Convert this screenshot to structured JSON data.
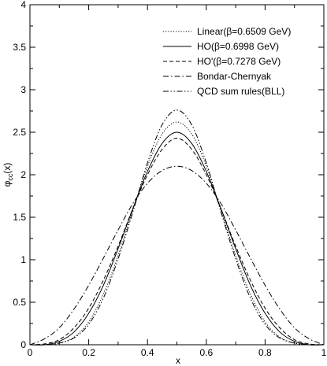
{
  "chart_data": {
    "type": "line",
    "title": "",
    "xlabel": "x",
    "ylabel_main": "φ",
    "ylabel_sub": "cc",
    "ylabel_tail": "(x)",
    "xlim": [
      0,
      1
    ],
    "ylim": [
      0,
      4
    ],
    "x_ticks": [
      "0",
      "0.2",
      "0.4",
      "0.6",
      "0.8",
      "1"
    ],
    "y_ticks": [
      "0",
      "0.5",
      "1",
      "1.5",
      "2",
      "2.5",
      "3",
      "3.5",
      "4"
    ],
    "legend_position": "top-right",
    "grid": false,
    "series": [
      {
        "name": "Linear(β=0.6509 GeV)",
        "style": "dotted",
        "x": [
          0,
          0.05,
          0.1,
          0.15,
          0.2,
          0.25,
          0.3,
          0.35,
          0.4,
          0.45,
          0.5,
          0.55,
          0.6,
          0.65,
          0.7,
          0.75,
          0.8,
          0.85,
          0.9,
          0.95,
          1
        ],
        "y": [
          0,
          0.0,
          0.02,
          0.09,
          0.27,
          0.6,
          1.05,
          1.58,
          2.1,
          2.48,
          2.62,
          2.48,
          2.1,
          1.58,
          1.05,
          0.6,
          0.27,
          0.09,
          0.02,
          0.0,
          0
        ]
      },
      {
        "name": "HO(β=0.6998 GeV)",
        "style": "solid",
        "x": [
          0,
          0.05,
          0.1,
          0.15,
          0.2,
          0.25,
          0.3,
          0.35,
          0.4,
          0.45,
          0.5,
          0.55,
          0.6,
          0.65,
          0.7,
          0.75,
          0.8,
          0.85,
          0.9,
          0.95,
          1
        ],
        "y": [
          0,
          0.0,
          0.04,
          0.15,
          0.37,
          0.7,
          1.13,
          1.6,
          2.04,
          2.37,
          2.5,
          2.37,
          2.04,
          1.6,
          1.13,
          0.7,
          0.37,
          0.15,
          0.04,
          0.0,
          0
        ]
      },
      {
        "name": "HO'(β=0.7278 GeV)",
        "style": "dashed",
        "x": [
          0,
          0.05,
          0.1,
          0.15,
          0.2,
          0.25,
          0.3,
          0.35,
          0.4,
          0.45,
          0.5,
          0.55,
          0.6,
          0.65,
          0.7,
          0.75,
          0.8,
          0.85,
          0.9,
          0.95,
          1
        ],
        "y": [
          0,
          0.01,
          0.06,
          0.2,
          0.43,
          0.76,
          1.16,
          1.6,
          2.0,
          2.3,
          2.43,
          2.3,
          2.0,
          1.6,
          1.16,
          0.76,
          0.43,
          0.2,
          0.06,
          0.01,
          0
        ]
      },
      {
        "name": "Bondar-Chernyak",
        "style": "dash-dot",
        "x": [
          0,
          0.05,
          0.1,
          0.15,
          0.2,
          0.25,
          0.3,
          0.35,
          0.4,
          0.45,
          0.5,
          0.55,
          0.6,
          0.65,
          0.7,
          0.75,
          0.8,
          0.85,
          0.9,
          0.95,
          1
        ],
        "y": [
          0,
          0.07,
          0.2,
          0.42,
          0.7,
          1.02,
          1.35,
          1.66,
          1.9,
          2.05,
          2.1,
          2.05,
          1.9,
          1.66,
          1.35,
          1.02,
          0.7,
          0.42,
          0.2,
          0.07,
          0
        ]
      },
      {
        "name": "QCD sum rules(BLL)",
        "style": "dash-dot-dot",
        "x": [
          0,
          0.05,
          0.1,
          0.15,
          0.2,
          0.25,
          0.3,
          0.35,
          0.4,
          0.45,
          0.5,
          0.55,
          0.6,
          0.65,
          0.7,
          0.75,
          0.8,
          0.85,
          0.9,
          0.95,
          1
        ],
        "y": [
          0,
          0.0,
          0.02,
          0.08,
          0.24,
          0.55,
          1.01,
          1.56,
          2.14,
          2.59,
          2.76,
          2.59,
          2.14,
          1.56,
          1.01,
          0.55,
          0.24,
          0.08,
          0.02,
          0.0,
          0
        ]
      }
    ]
  }
}
